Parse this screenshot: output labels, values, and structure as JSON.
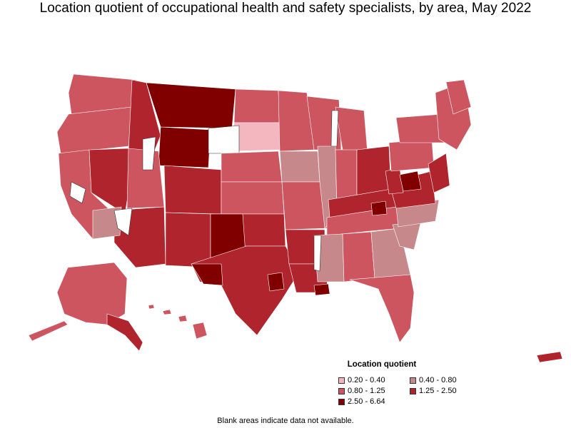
{
  "title": "Location quotient of occupational health and safety specialists, by area, May 2022",
  "legend": {
    "title": "Location quotient",
    "items": [
      {
        "label": "0.20 - 0.40",
        "color": "#f4b6bf"
      },
      {
        "label": "0.40 - 0.80",
        "color": "#c7888c"
      },
      {
        "label": "0.80 - 1.25",
        "color": "#cc5560"
      },
      {
        "label": "1.25 - 2.50",
        "color": "#b0242d"
      },
      {
        "label": "2.50 - 6.64",
        "color": "#800000"
      }
    ]
  },
  "footnote": "Blank areas indicate data not available.",
  "colors": {
    "c0": "#f4b6bf",
    "c1": "#c7888c",
    "c2": "#cc5560",
    "c3": "#b0242d",
    "c4": "#800000",
    "border": "#ffffff",
    "blank": "#ffffff"
  }
}
